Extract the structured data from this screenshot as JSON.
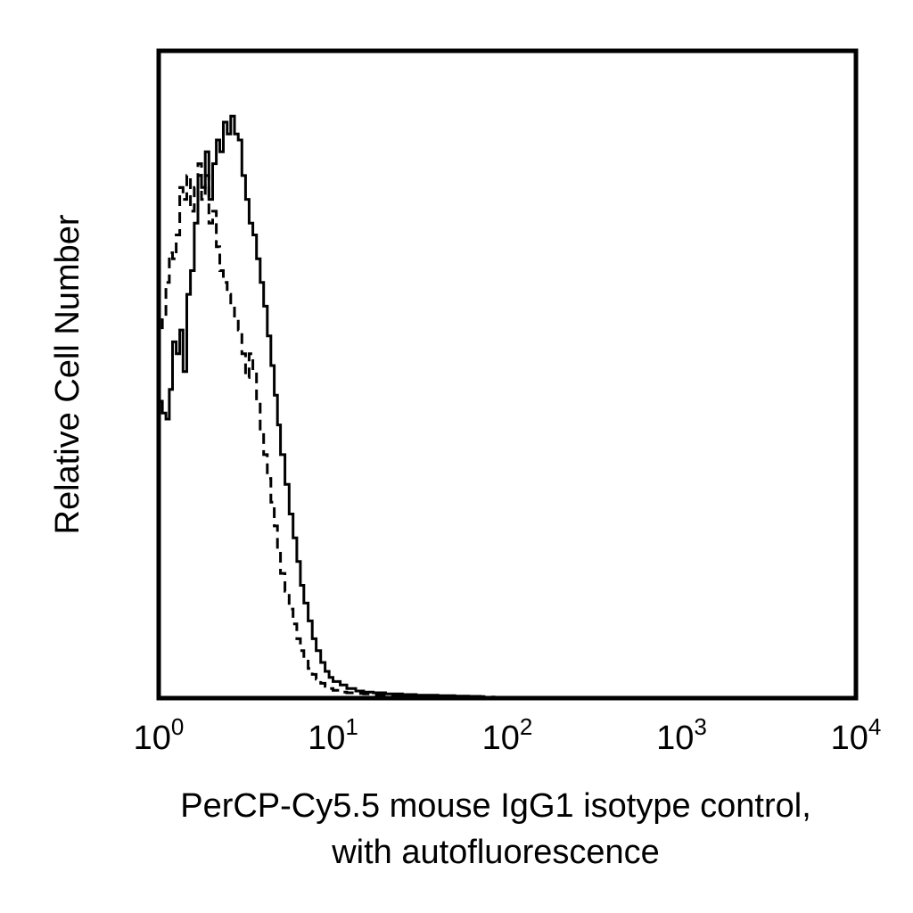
{
  "chart_data": {
    "type": "line",
    "title": "",
    "xlabel_lines": [
      "PerCP-Cy5.5 mouse IgG1 isotype control,",
      "with autofluorescence"
    ],
    "ylabel": "Relative Cell Number",
    "x_scale": "log",
    "xlim": [
      1,
      10000
    ],
    "ylim": [
      0,
      100
    ],
    "grid": false,
    "x_ticks": [
      {
        "value": 1,
        "base": "10",
        "exp": "0"
      },
      {
        "value": 10,
        "base": "10",
        "exp": "1"
      },
      {
        "value": 100,
        "base": "10",
        "exp": "2"
      },
      {
        "value": 1000,
        "base": "10",
        "exp": "3"
      },
      {
        "value": 10000,
        "base": "10",
        "exp": "4"
      }
    ],
    "series": [
      {
        "style": "solid",
        "color": "#000000",
        "x": [
          1.0,
          1.05,
          1.1,
          1.15,
          1.2,
          1.26,
          1.32,
          1.38,
          1.45,
          1.52,
          1.6,
          1.68,
          1.76,
          1.85,
          1.94,
          2.04,
          2.14,
          2.24,
          2.35,
          2.47,
          2.59,
          2.72,
          2.86,
          3.0,
          3.15,
          3.3,
          3.47,
          3.64,
          3.82,
          4.0,
          4.2,
          4.4,
          4.6,
          4.8,
          5.0,
          5.3,
          5.6,
          5.9,
          6.2,
          6.5,
          6.8,
          7.2,
          7.6,
          8.0,
          8.5,
          9.0,
          9.5,
          10.0,
          11.0,
          12.0,
          13.5,
          15.0,
          17.0,
          20.0,
          25.0,
          30.0,
          40.0,
          50.0,
          60.0,
          70.0
        ],
        "y": [
          50,
          48,
          47,
          52,
          60,
          58,
          62,
          55,
          68,
          72,
          80,
          88,
          86,
          92,
          84,
          90,
          94,
          92,
          97,
          95,
          98,
          95,
          94,
          88,
          84,
          80,
          78,
          74,
          70,
          66,
          61,
          56,
          51,
          46,
          41,
          36,
          31,
          27,
          23,
          19,
          16,
          13,
          10,
          8,
          6,
          4.5,
          3.5,
          2.8,
          2.2,
          1.6,
          1.2,
          1.0,
          0.9,
          0.7,
          0.6,
          0.5,
          0.4,
          0.35,
          0.3,
          0.2
        ]
      },
      {
        "style": "dashed",
        "color": "#000000",
        "x": [
          1.0,
          1.05,
          1.1,
          1.15,
          1.2,
          1.26,
          1.32,
          1.38,
          1.45,
          1.52,
          1.6,
          1.68,
          1.76,
          1.85,
          1.94,
          2.04,
          2.14,
          2.24,
          2.35,
          2.47,
          2.59,
          2.72,
          2.86,
          3.0,
          3.15,
          3.3,
          3.47,
          3.64,
          3.82,
          4.0,
          4.2,
          4.4,
          4.6,
          4.8,
          5.0,
          5.3,
          5.6,
          5.9,
          6.2,
          6.5,
          6.8,
          7.2,
          7.6,
          8.0,
          8.5,
          9.0,
          9.5,
          10.0,
          11.0,
          12.0,
          13.5,
          15.0,
          17.0,
          20.0,
          25.0,
          30.0,
          40.0,
          50.0,
          60.0,
          70.0,
          80.0
        ],
        "y": [
          62,
          64,
          70,
          75,
          74,
          78,
          86,
          84,
          88,
          82,
          86,
          90,
          84,
          88,
          80,
          82,
          76,
          72,
          70,
          68,
          66,
          64,
          62,
          58,
          54,
          58,
          55,
          50,
          45,
          41,
          37,
          33,
          29,
          25,
          21,
          18,
          15,
          12.5,
          10,
          8,
          6.5,
          5,
          4,
          3.2,
          2.5,
          2.0,
          1.6,
          1.3,
          1.0,
          0.9,
          0.8,
          0.7,
          0.6,
          0.5,
          0.45,
          0.4,
          0.35,
          0.3,
          0.3,
          0.25,
          0.2
        ]
      }
    ]
  }
}
